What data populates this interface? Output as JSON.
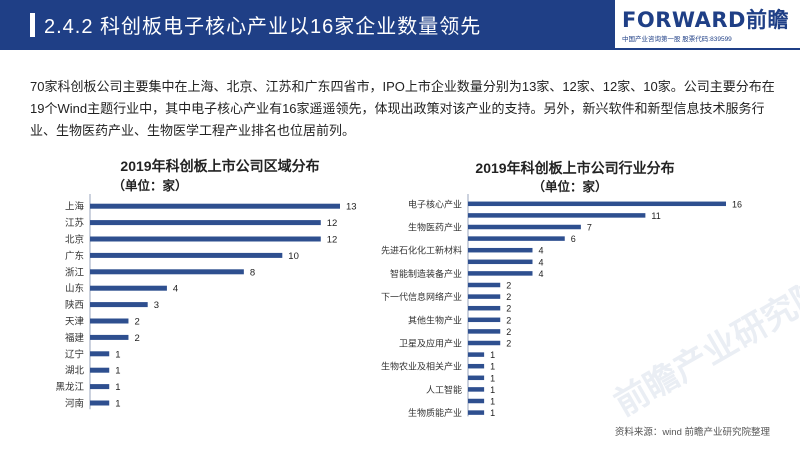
{
  "header": {
    "title": "2.4.2 科创板电子核心产业以16家企业数量领先",
    "logo_main": "FORWARD前瞻",
    "logo_sub": "中国产业咨询第一股 股票代码:839599"
  },
  "paragraph": "70家科创板公司主要集中在上海、北京、江苏和广东四省市，IPO上市企业数量分别为13家、12家、12家、10家。公司主要分布在19个Wind主题行业中，其中电子核心产业有16家遥遥领先，体现出政策对该产业的支持。另外，新兴软件和新型信息技术服务行业、生物医药产业、生物医学工程产业排名也位居前列。",
  "watermark": "前瞻产业研究院",
  "colors": {
    "brand": "#1f3f86",
    "bar": "#2e4f8f"
  },
  "source": "资料来源：wind 前瞻产业研究院整理",
  "chart_data": [
    {
      "type": "bar",
      "orientation": "horizontal",
      "title": "2019年科创板上市公司区域分布",
      "subtitle": "（单位：家）",
      "categories": [
        "上海",
        "江苏",
        "北京",
        "广东",
        "浙江",
        "山东",
        "陕西",
        "天津",
        "福建",
        "辽宁",
        "湖北",
        "黑龙江",
        "河南"
      ],
      "values": [
        13,
        12,
        12,
        10,
        8,
        4,
        3,
        2,
        2,
        1,
        1,
        1,
        1
      ],
      "xlim": [
        0,
        13
      ]
    },
    {
      "type": "bar",
      "orientation": "horizontal",
      "title": "2019年科创板上市公司行业分布",
      "subtitle": "（单位：家）",
      "categories": [
        "电子核心产业",
        "",
        "生物医药产业",
        "",
        "先进石化化工新材料",
        "",
        "智能制造装备产业",
        "",
        "下一代信息网络产业",
        "",
        "其他生物产业",
        "",
        "卫星及应用产业",
        "",
        "生物农业及相关产业",
        "",
        "人工智能",
        "",
        "生物质能产业"
      ],
      "values": [
        16,
        11,
        7,
        6,
        4,
        4,
        4,
        2,
        2,
        2,
        2,
        2,
        2,
        1,
        1,
        1,
        1,
        1,
        1
      ],
      "xlim": [
        0,
        16
      ]
    }
  ]
}
